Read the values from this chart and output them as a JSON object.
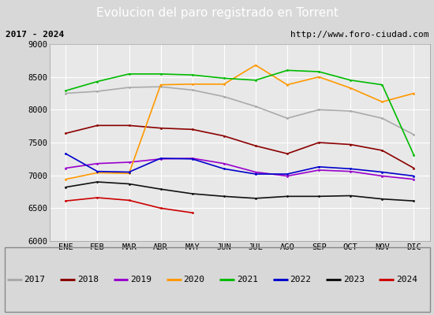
{
  "title": "Evolucion del paro registrado en Torrent",
  "subtitle_left": "2017 - 2024",
  "subtitle_right": "http://www.foro-ciudad.com",
  "months": [
    "ENE",
    "FEB",
    "MAR",
    "ABR",
    "MAY",
    "JUN",
    "JUL",
    "AGO",
    "SEP",
    "OCT",
    "NOV",
    "DIC"
  ],
  "ylim": [
    6000,
    9000
  ],
  "yticks": [
    6000,
    6500,
    7000,
    7500,
    8000,
    8500,
    9000
  ],
  "series": {
    "2017": {
      "color": "#aaaaaa",
      "data": [
        8250,
        8280,
        8340,
        8350,
        8300,
        8200,
        8050,
        7870,
        8000,
        7980,
        7870,
        7620
      ]
    },
    "2018": {
      "color": "#8b0000",
      "data": [
        7640,
        7760,
        7760,
        7720,
        7700,
        7600,
        7450,
        7330,
        7500,
        7470,
        7380,
        7110
      ]
    },
    "2019": {
      "color": "#9900cc",
      "data": [
        7110,
        7180,
        7200,
        7250,
        7260,
        7180,
        7050,
        6990,
        7080,
        7060,
        6990,
        6940
      ]
    },
    "2020": {
      "color": "#ff9900",
      "data": [
        6940,
        7040,
        7030,
        8380,
        8390,
        8390,
        8680,
        8380,
        8500,
        8330,
        8120,
        8250
      ]
    },
    "2021": {
      "color": "#00bb00",
      "data": [
        8290,
        8430,
        8545,
        8545,
        8530,
        8480,
        8450,
        8600,
        8580,
        8450,
        8380,
        7310
      ]
    },
    "2022": {
      "color": "#0000cc",
      "data": [
        7330,
        7060,
        7050,
        7260,
        7250,
        7100,
        7020,
        7020,
        7130,
        7100,
        7050,
        6990
      ]
    },
    "2023": {
      "color": "#111111",
      "data": [
        6820,
        6900,
        6870,
        6790,
        6720,
        6680,
        6650,
        6680,
        6680,
        6690,
        6640,
        6610
      ]
    },
    "2024": {
      "color": "#cc0000",
      "data": [
        6610,
        6660,
        6620,
        6500,
        6430,
        null,
        null,
        null,
        null,
        null,
        null,
        null
      ]
    }
  },
  "background_color": "#d8d8d8",
  "plot_background": "#e8e8e8",
  "title_bg": "#4472c4",
  "title_color": "#ffffff",
  "subtitle_bg": "#c8c8c8",
  "grid_color": "#ffffff",
  "legend_bg": "#e8e8e8"
}
